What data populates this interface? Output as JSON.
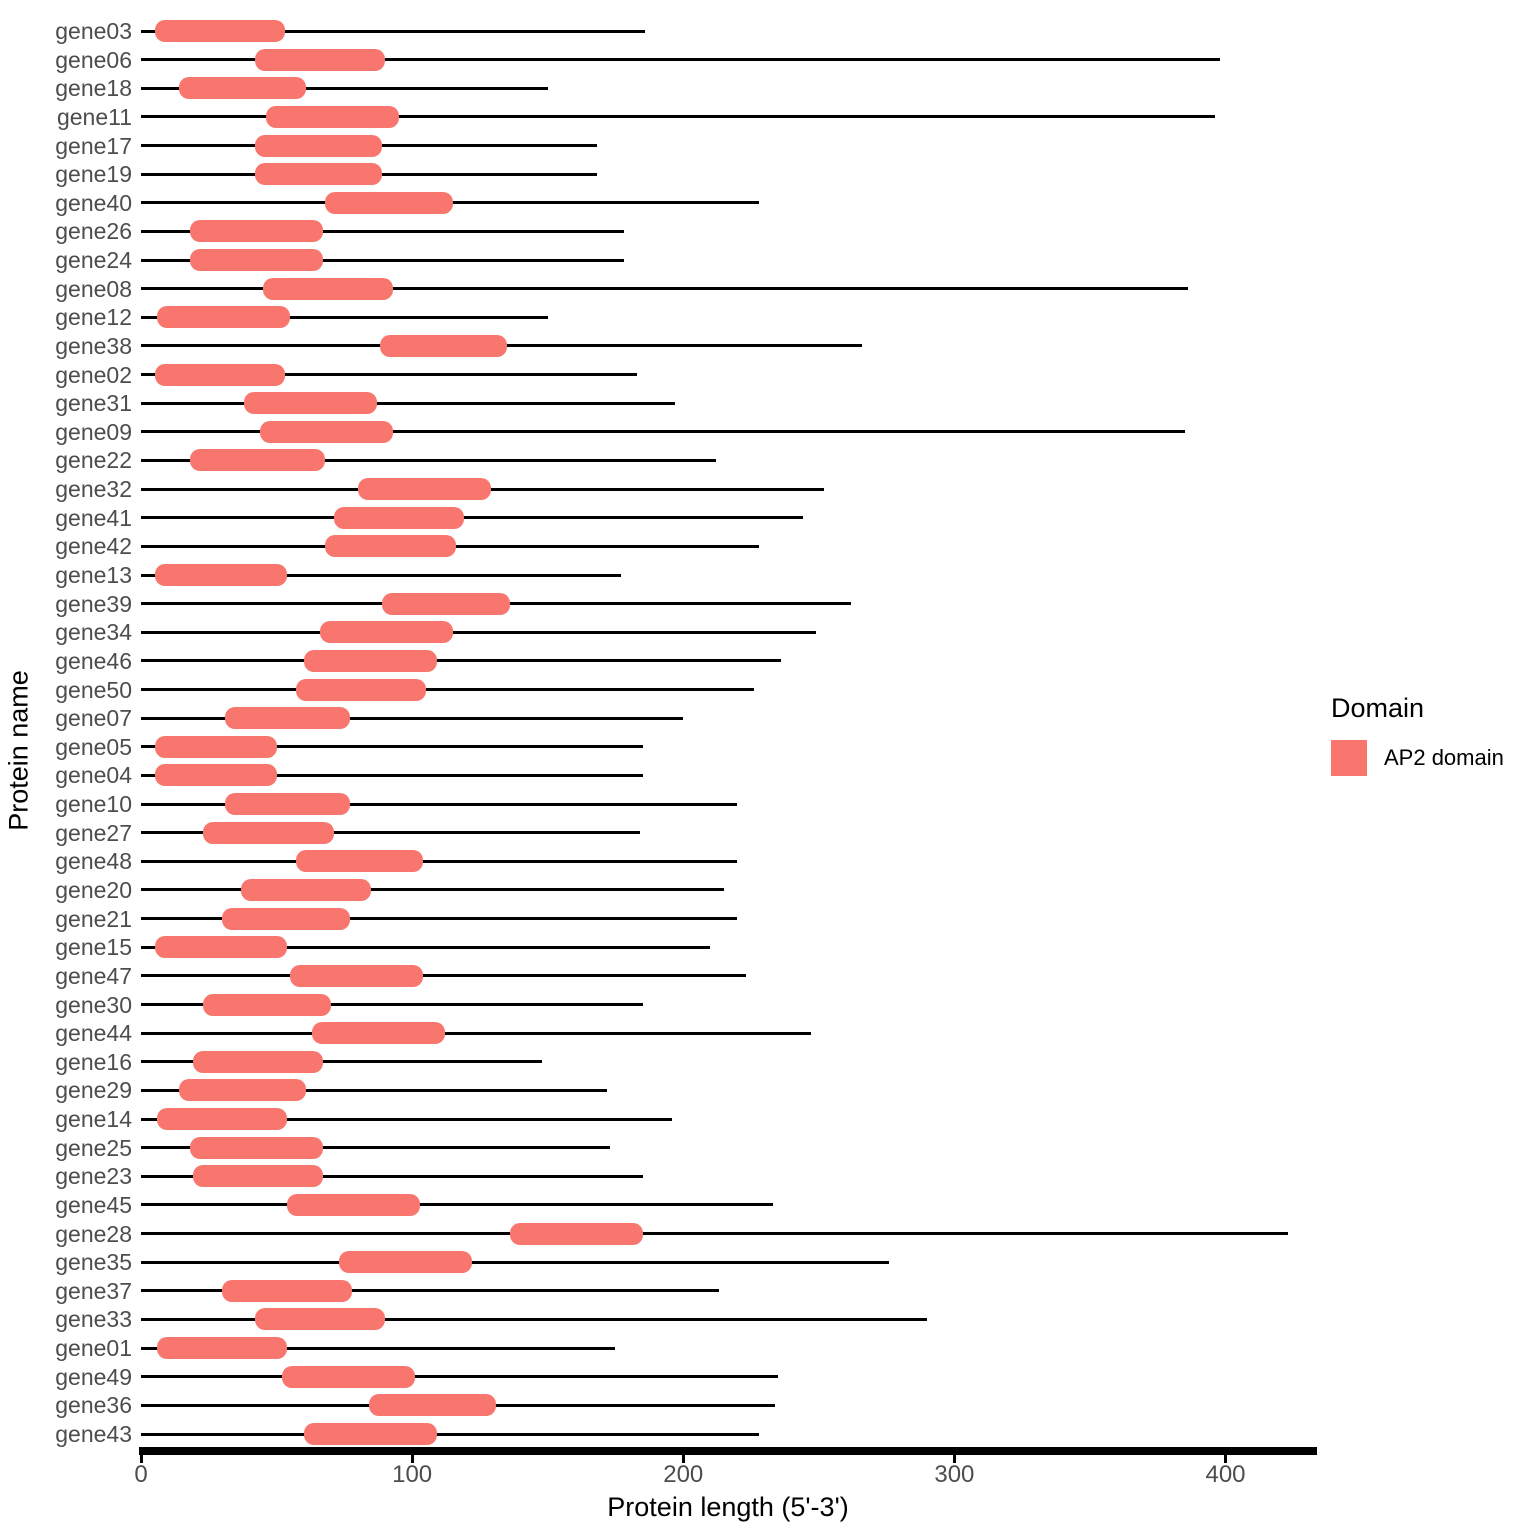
{
  "chart_data": {
    "type": "bar",
    "subtype": "gene-structure-segments",
    "title": "",
    "xlabel": "Protein length (5'-3')",
    "ylabel": "Protein name",
    "xlim": [
      0,
      433
    ],
    "xticks": [
      0,
      100,
      200,
      300,
      400
    ],
    "grid": "off",
    "legend": {
      "position": "right",
      "title": "Domain",
      "items": [
        {
          "label": "AP2 domain",
          "color": "#F8766D"
        }
      ]
    },
    "colors": {
      "domain": "#F8766D",
      "line": "#000000",
      "axis": "#000000",
      "text_gray": "#4D4D4D"
    },
    "genes": [
      {
        "name": "gene03",
        "length": 186,
        "domain": [
          5,
          53
        ]
      },
      {
        "name": "gene06",
        "length": 398,
        "domain": [
          42,
          90
        ]
      },
      {
        "name": "gene18",
        "length": 150,
        "domain": [
          14,
          61
        ]
      },
      {
        "name": "gene11",
        "length": 396,
        "domain": [
          46,
          95
        ]
      },
      {
        "name": "gene17",
        "length": 168,
        "domain": [
          42,
          89
        ]
      },
      {
        "name": "gene19",
        "length": 168,
        "domain": [
          42,
          89
        ]
      },
      {
        "name": "gene40",
        "length": 228,
        "domain": [
          68,
          115
        ]
      },
      {
        "name": "gene26",
        "length": 178,
        "domain": [
          18,
          67
        ]
      },
      {
        "name": "gene24",
        "length": 178,
        "domain": [
          18,
          67
        ]
      },
      {
        "name": "gene08",
        "length": 386,
        "domain": [
          45,
          93
        ]
      },
      {
        "name": "gene12",
        "length": 150,
        "domain": [
          6,
          55
        ]
      },
      {
        "name": "gene38",
        "length": 266,
        "domain": [
          88,
          135
        ]
      },
      {
        "name": "gene02",
        "length": 183,
        "domain": [
          5,
          53
        ]
      },
      {
        "name": "gene31",
        "length": 197,
        "domain": [
          38,
          87
        ]
      },
      {
        "name": "gene09",
        "length": 385,
        "domain": [
          44,
          93
        ]
      },
      {
        "name": "gene22",
        "length": 212,
        "domain": [
          18,
          68
        ]
      },
      {
        "name": "gene32",
        "length": 252,
        "domain": [
          80,
          129
        ]
      },
      {
        "name": "gene41",
        "length": 244,
        "domain": [
          71,
          119
        ]
      },
      {
        "name": "gene42",
        "length": 228,
        "domain": [
          68,
          116
        ]
      },
      {
        "name": "gene13",
        "length": 177,
        "domain": [
          5,
          54
        ]
      },
      {
        "name": "gene39",
        "length": 262,
        "domain": [
          89,
          136
        ]
      },
      {
        "name": "gene34",
        "length": 249,
        "domain": [
          66,
          115
        ]
      },
      {
        "name": "gene46",
        "length": 236,
        "domain": [
          60,
          109
        ]
      },
      {
        "name": "gene50",
        "length": 226,
        "domain": [
          57,
          105
        ]
      },
      {
        "name": "gene07",
        "length": 200,
        "domain": [
          31,
          77
        ]
      },
      {
        "name": "gene05",
        "length": 185,
        "domain": [
          5,
          50
        ]
      },
      {
        "name": "gene04",
        "length": 185,
        "domain": [
          5,
          50
        ]
      },
      {
        "name": "gene10",
        "length": 220,
        "domain": [
          31,
          77
        ]
      },
      {
        "name": "gene27",
        "length": 184,
        "domain": [
          23,
          71
        ]
      },
      {
        "name": "gene48",
        "length": 220,
        "domain": [
          57,
          104
        ]
      },
      {
        "name": "gene20",
        "length": 215,
        "domain": [
          37,
          85
        ]
      },
      {
        "name": "gene21",
        "length": 220,
        "domain": [
          30,
          77
        ]
      },
      {
        "name": "gene15",
        "length": 210,
        "domain": [
          5,
          54
        ]
      },
      {
        "name": "gene47",
        "length": 223,
        "domain": [
          55,
          104
        ]
      },
      {
        "name": "gene30",
        "length": 185,
        "domain": [
          23,
          70
        ]
      },
      {
        "name": "gene44",
        "length": 247,
        "domain": [
          63,
          112
        ]
      },
      {
        "name": "gene16",
        "length": 148,
        "domain": [
          19,
          67
        ]
      },
      {
        "name": "gene29",
        "length": 172,
        "domain": [
          14,
          61
        ]
      },
      {
        "name": "gene14",
        "length": 196,
        "domain": [
          6,
          54
        ]
      },
      {
        "name": "gene25",
        "length": 173,
        "domain": [
          18,
          67
        ]
      },
      {
        "name": "gene23",
        "length": 185,
        "domain": [
          19,
          67
        ]
      },
      {
        "name": "gene45",
        "length": 233,
        "domain": [
          54,
          103
        ]
      },
      {
        "name": "gene28",
        "length": 423,
        "domain": [
          136,
          185
        ]
      },
      {
        "name": "gene35",
        "length": 276,
        "domain": [
          73,
          122
        ]
      },
      {
        "name": "gene37",
        "length": 213,
        "domain": [
          30,
          78
        ]
      },
      {
        "name": "gene33",
        "length": 290,
        "domain": [
          42,
          90
        ]
      },
      {
        "name": "gene01",
        "length": 175,
        "domain": [
          6,
          54
        ]
      },
      {
        "name": "gene49",
        "length": 235,
        "domain": [
          52,
          101
        ]
      },
      {
        "name": "gene36",
        "length": 234,
        "domain": [
          84,
          131
        ]
      },
      {
        "name": "gene43",
        "length": 228,
        "domain": [
          60,
          109
        ]
      }
    ]
  }
}
